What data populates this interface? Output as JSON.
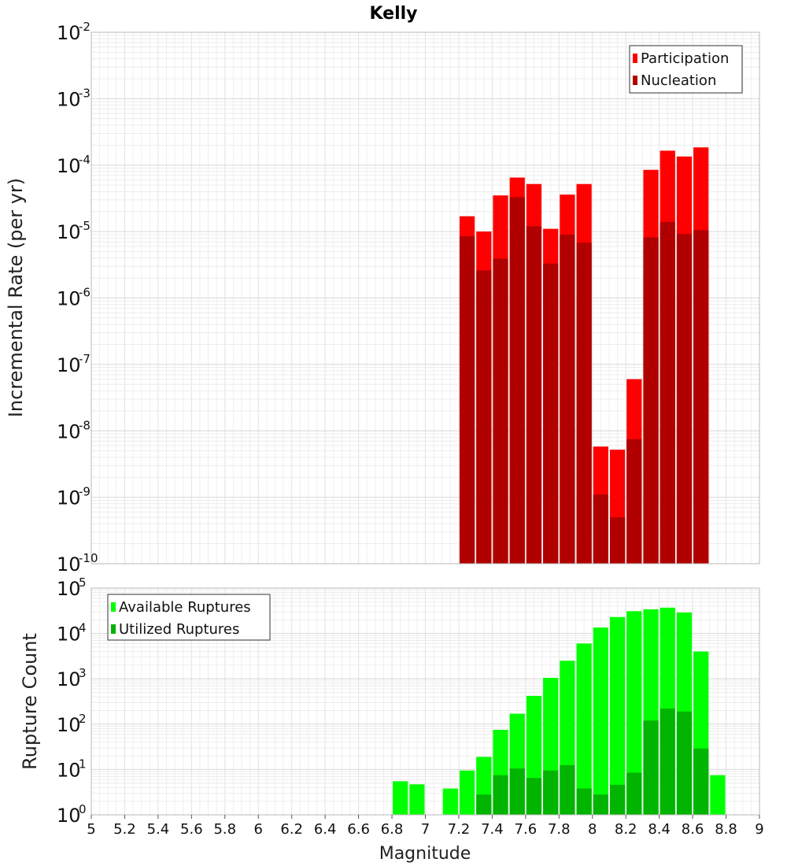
{
  "chart_data": {
    "title": "Kelly",
    "xlabel": "Magnitude",
    "xlim": [
      5,
      9
    ],
    "xticks": [
      "5",
      "5.2",
      "5.4",
      "5.6",
      "5.8",
      "6",
      "6.2",
      "6.4",
      "6.6",
      "6.8",
      "7",
      "7.2",
      "7.4",
      "7.6",
      "7.8",
      "8",
      "8.2",
      "8.4",
      "8.6",
      "8.8",
      "9"
    ],
    "bar_width": 0.1,
    "panels": [
      {
        "type": "bar",
        "yscale": "log",
        "ylabel": "Incremental Rate (per yr)",
        "ylim_exponents": [
          -10,
          -2
        ],
        "legend_position": "top-right",
        "series": [
          {
            "name": "Participation",
            "color": "#ff0000",
            "x": [
              7.25,
              7.35,
              7.45,
              7.55,
              7.65,
              7.75,
              7.85,
              7.95,
              8.05,
              8.15,
              8.25,
              8.35,
              8.45,
              8.55,
              8.65
            ],
            "values": [
              1.7e-05,
              1e-05,
              3.5e-05,
              6.5e-05,
              5.2e-05,
              1.1e-05,
              3.6e-05,
              5.2e-05,
              5.8e-09,
              5.2e-09,
              6e-08,
              8.5e-05,
              0.000165,
              0.000135,
              0.000185
            ]
          },
          {
            "name": "Nucleation",
            "color": "#b00000",
            "x": [
              7.25,
              7.35,
              7.45,
              7.55,
              7.65,
              7.75,
              7.85,
              7.95,
              8.05,
              8.15,
              8.25,
              8.35,
              8.45,
              8.55,
              8.65
            ],
            "values": [
              8.5e-06,
              2.6e-06,
              3.9e-06,
              3.3e-05,
              1.2e-05,
              3.3e-06,
              9e-06,
              6.8e-06,
              1.1e-09,
              5e-10,
              7.5e-09,
              8.2e-06,
              1.4e-05,
              9.2e-06,
              1.05e-05
            ]
          }
        ]
      },
      {
        "type": "bar",
        "yscale": "log",
        "ylabel": "Rupture Count",
        "ylim_exponents": [
          0,
          5
        ],
        "legend_position": "top-left",
        "series": [
          {
            "name": "Available Ruptures",
            "color": "#00ff00",
            "x": [
              6.85,
              6.95,
              7.15,
              7.25,
              7.35,
              7.45,
              7.55,
              7.65,
              7.75,
              7.85,
              7.95,
              8.05,
              8.15,
              8.25,
              8.35,
              8.45,
              8.55,
              8.65,
              8.75
            ],
            "values": [
              5.5,
              4.7,
              3.8,
              9.5,
              19,
              75,
              170,
              420,
              1050,
              2500,
              6000,
              13500,
              23000,
              31000,
              34000,
              37000,
              29000,
              4000,
              7.5
            ]
          },
          {
            "name": "Utilized Ruptures",
            "color": "#00b400",
            "x": [
              7.25,
              7.35,
              7.45,
              7.55,
              7.65,
              7.75,
              7.85,
              7.95,
              8.05,
              8.15,
              8.25,
              8.35,
              8.45,
              8.55,
              8.65
            ],
            "values": [
              1.0,
              2.8,
              7.5,
              10.5,
              6.5,
              9.5,
              12.5,
              3.8,
              2.8,
              4.6,
              8.5,
              120,
              220,
              190,
              29
            ]
          }
        ]
      }
    ]
  }
}
